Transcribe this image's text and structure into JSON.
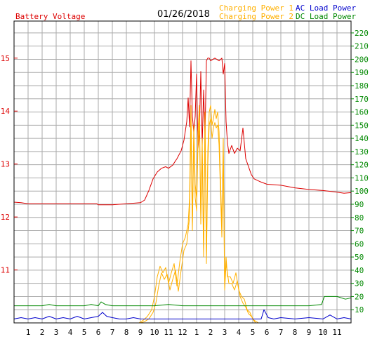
{
  "chart_data": {
    "type": "line",
    "title": "01/26/2018",
    "left_axis_label": "Battery Voltage",
    "left_axis": {
      "min": 10.0,
      "max": 15.7,
      "ticks": [
        11,
        12,
        13,
        14,
        15
      ]
    },
    "right_axis": {
      "min": 0,
      "max": 229,
      "ticks": [
        10,
        20,
        30,
        40,
        50,
        60,
        70,
        80,
        90,
        100,
        110,
        120,
        130,
        140,
        150,
        160,
        170,
        180,
        190,
        200,
        210,
        220
      ]
    },
    "x_tick_labels": [
      "1",
      "2",
      "3",
      "4",
      "5",
      "6",
      "7",
      "8",
      "9",
      "10",
      "11",
      "12",
      "1",
      "2",
      "3",
      "4",
      "5",
      "6",
      "7",
      "8",
      "9",
      "10",
      "11"
    ],
    "x_range_hours": [
      0,
      24
    ],
    "grid": true,
    "legend": [
      {
        "label": "Charging Power 1",
        "color": "#ffb000"
      },
      {
        "label": "AC Load Power",
        "color": "#0000cc"
      },
      {
        "label": "Charging Power 2",
        "color": "#ffb000"
      },
      {
        "label": "DC Load Power",
        "color": "#008800"
      }
    ],
    "series": [
      {
        "name": "Battery Voltage",
        "axis": "left",
        "color": "#dd0000",
        "x": [
          0,
          0.5,
          1,
          2,
          3,
          4,
          5,
          5.9,
          6,
          7,
          7.5,
          8,
          8.5,
          9,
          9.3,
          9.6,
          9.9,
          10.2,
          10.5,
          10.8,
          11,
          11.3,
          11.6,
          11.9,
          12.1,
          12.3,
          12.4,
          12.5,
          12.6,
          12.7,
          12.8,
          12.9,
          13.0,
          13.1,
          13.2,
          13.3,
          13.4,
          13.5,
          13.6,
          13.7,
          13.8,
          13.9,
          14.0,
          14.3,
          14.6,
          14.8,
          14.9,
          15.0,
          15.1,
          15.2,
          15.3,
          15.5,
          15.7,
          15.9,
          16.1,
          16.3,
          16.5,
          16.7,
          16.9,
          17.1,
          17.5,
          18,
          19,
          20,
          21,
          22,
          23,
          23.5,
          24
        ],
        "y": [
          12.28,
          12.27,
          12.25,
          12.25,
          12.25,
          12.25,
          12.25,
          12.25,
          12.23,
          12.23,
          12.24,
          12.25,
          12.26,
          12.27,
          12.32,
          12.5,
          12.72,
          12.85,
          12.92,
          12.95,
          12.92,
          12.98,
          13.1,
          13.25,
          13.45,
          13.8,
          14.25,
          13.7,
          14.95,
          13.9,
          13.6,
          13.9,
          14.7,
          13.3,
          13.6,
          14.75,
          13.35,
          14.4,
          13.5,
          14.95,
          15.0,
          15.0,
          14.95,
          15.0,
          14.95,
          15.0,
          14.7,
          14.9,
          13.8,
          13.4,
          13.2,
          13.35,
          13.2,
          13.3,
          13.25,
          13.68,
          13.1,
          12.95,
          12.8,
          12.72,
          12.67,
          12.62,
          12.6,
          12.55,
          12.52,
          12.5,
          12.47,
          12.45,
          12.46
        ]
      },
      {
        "name": "Charging Power 1",
        "axis": "right",
        "color": "#ffb000",
        "x": [
          0,
          8.9,
          9.2,
          9.5,
          9.8,
          10.0,
          10.2,
          10.4,
          10.6,
          10.8,
          11.0,
          11.2,
          11.4,
          11.6,
          11.8,
          12.0,
          12.2,
          12.4,
          12.5,
          12.6,
          12.7,
          12.8,
          12.9,
          13.0,
          13.1,
          13.2,
          13.3,
          13.4,
          13.5,
          13.6,
          13.7,
          13.8,
          13.9,
          14.0,
          14.1,
          14.2,
          14.3,
          14.4,
          14.5,
          14.6,
          14.7,
          14.8,
          14.9,
          15.0,
          15.1,
          15.2,
          15.4,
          15.6,
          15.8,
          16.0,
          16.2,
          16.4,
          16.6,
          16.8,
          17.0,
          17.2,
          17.5,
          24
        ],
        "y": [
          0,
          0,
          2,
          5,
          10,
          20,
          35,
          43,
          38,
          42,
          30,
          38,
          45,
          28,
          46,
          60,
          65,
          75,
          95,
          165,
          75,
          150,
          105,
          95,
          145,
          165,
          80,
          140,
          55,
          160,
          50,
          130,
          160,
          165,
          150,
          155,
          162,
          155,
          160,
          145,
          110,
          75,
          140,
          30,
          50,
          35,
          35,
          30,
          38,
          25,
          20,
          18,
          10,
          8,
          3,
          0,
          0,
          0
        ]
      },
      {
        "name": "Charging Power 2",
        "axis": "right",
        "color": "#ffb000",
        "x": [
          0,
          9.0,
          9.3,
          9.6,
          9.9,
          10.1,
          10.3,
          10.5,
          10.7,
          10.9,
          11.1,
          11.3,
          11.5,
          11.7,
          11.9,
          12.1,
          12.3,
          12.5,
          12.6,
          12.7,
          12.8,
          12.9,
          13.0,
          13.1,
          13.2,
          13.3,
          13.4,
          13.5,
          13.6,
          13.7,
          13.8,
          13.9,
          14.0,
          14.1,
          14.2,
          14.3,
          14.4,
          14.5,
          14.6,
          14.7,
          14.8,
          14.9,
          15.0,
          15.1,
          15.3,
          15.5,
          15.7,
          15.9,
          16.1,
          16.3,
          16.5,
          16.7,
          16.9,
          17.1,
          17.4,
          24
        ],
        "y": [
          0,
          0,
          1,
          3,
          8,
          15,
          28,
          38,
          33,
          37,
          25,
          33,
          40,
          24,
          40,
          55,
          60,
          80,
          150,
          70,
          140,
          95,
          85,
          135,
          155,
          75,
          130,
          50,
          150,
          45,
          120,
          150,
          155,
          140,
          148,
          152,
          148,
          150,
          135,
          100,
          65,
          130,
          25,
          45,
          30,
          30,
          25,
          32,
          20,
          15,
          12,
          7,
          5,
          2,
          0,
          0
        ]
      },
      {
        "name": "AC Load Power",
        "axis": "right",
        "color": "#0000cc",
        "x": [
          0,
          0.5,
          1,
          1.5,
          2,
          2.5,
          3,
          3.5,
          4,
          4.5,
          5,
          5.5,
          6,
          6.3,
          6.6,
          7,
          7.5,
          8,
          8.5,
          9,
          9.5,
          10,
          11,
          12,
          13,
          14,
          15,
          16,
          17,
          17.6,
          17.8,
          18.1,
          18.5,
          19,
          20,
          21,
          22,
          22.5,
          23,
          23.5,
          24
        ],
        "y": [
          3,
          4,
          3,
          4,
          3,
          5,
          3,
          4,
          3,
          5,
          3,
          4,
          5,
          8,
          5,
          4,
          3,
          3,
          4,
          3,
          3,
          3,
          3,
          3,
          3,
          3,
          3,
          3,
          3,
          3,
          10,
          4,
          3,
          4,
          3,
          4,
          3,
          6,
          3,
          4,
          3
        ]
      },
      {
        "name": "DC Load Power",
        "axis": "right",
        "color": "#008800",
        "x": [
          0,
          1,
          2,
          2.5,
          3,
          4,
          5,
          5.5,
          6,
          6.2,
          6.5,
          7,
          8,
          9,
          10,
          11,
          12,
          13,
          14,
          15,
          16,
          17,
          18,
          19,
          20,
          21,
          21.9,
          22.1,
          23,
          23.6,
          24
        ],
        "y": [
          13,
          13,
          13,
          14,
          13,
          13,
          13,
          14,
          13,
          16,
          14,
          13,
          13,
          13,
          13,
          14,
          13,
          13,
          13,
          13,
          13,
          13,
          13,
          13,
          13,
          13,
          14,
          20,
          20,
          18,
          19
        ]
      }
    ]
  }
}
